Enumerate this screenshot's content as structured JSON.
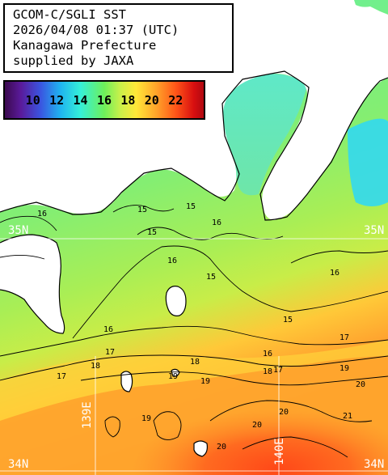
{
  "info": {
    "line1": "GCOM-C/SGLI SST",
    "line2": "2026/04/08 01:37 (UTC)",
    "line3": "Kanagawa Prefecture",
    "line4": "supplied by JAXA"
  },
  "legend": {
    "labels": [
      "10",
      "12",
      "14",
      "16",
      "18",
      "20",
      "22"
    ]
  },
  "grid": {
    "lat_top_left": "35N",
    "lat_top_right": "35N",
    "lat_bottom_left": "34N",
    "lat_bottom_right": "34N",
    "lon_left": "139E",
    "lon_right": "140E"
  },
  "contours": {
    "l1": "16",
    "l2": "15",
    "l3": "15",
    "l4": "16",
    "l5": "16",
    "l6": "15",
    "l7": "15",
    "l8": "16",
    "l9": "16",
    "l10": "15",
    "l11": "17",
    "l12": "16",
    "l13": "17",
    "l14": "17",
    "l15": "18",
    "l16": "19",
    "l17": "18",
    "l18": "17",
    "l19": "19",
    "l20": "20",
    "l21": "19",
    "l22": "20",
    "l23": "21",
    "l24": "20",
    "l25": "20",
    "l26": "19",
    "l27": "18"
  },
  "colors": {
    "land": "#ffffff",
    "coast": "#000000",
    "contour": "#000000",
    "gridline": "#ffffff"
  }
}
